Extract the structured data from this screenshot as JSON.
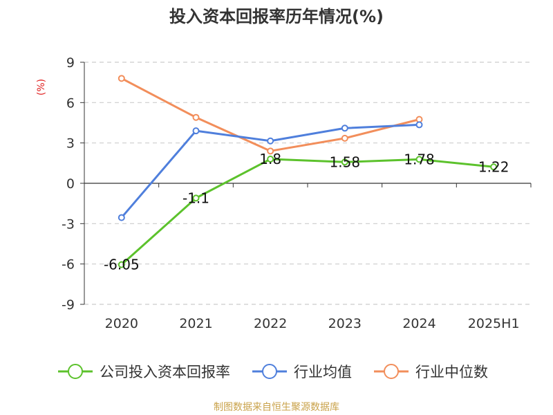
{
  "chart_data": {
    "type": "line",
    "title": "投入资本回报率历年情况(%)",
    "ylabel": "(%)",
    "categories": [
      "2020",
      "2021",
      "2022",
      "2023",
      "2024",
      "2025H1"
    ],
    "ylim": [
      -9,
      9
    ],
    "yticks": [
      9,
      6,
      3,
      0,
      -3,
      -6,
      -9
    ],
    "grid": true,
    "legend_position": "bottom",
    "series": [
      {
        "name": "公司投入资本回报率",
        "color": "#5cc22c",
        "values": [
          -6.05,
          -1.1,
          1.8,
          1.58,
          1.78,
          1.22
        ],
        "labels": [
          "-6.05",
          "-1.1",
          "1.8",
          "1.58",
          "1.78",
          "1.22"
        ]
      },
      {
        "name": "行业均值",
        "color": "#4f7fdc",
        "values": [
          -2.55,
          3.9,
          3.15,
          4.1,
          4.35,
          null
        ]
      },
      {
        "name": "行业中位数",
        "color": "#f28e5b",
        "values": [
          7.8,
          4.9,
          2.4,
          3.35,
          4.75,
          null
        ]
      }
    ]
  },
  "ylabel_color": "#e02020",
  "source_text": "制图数据来自恒生聚源数据库"
}
